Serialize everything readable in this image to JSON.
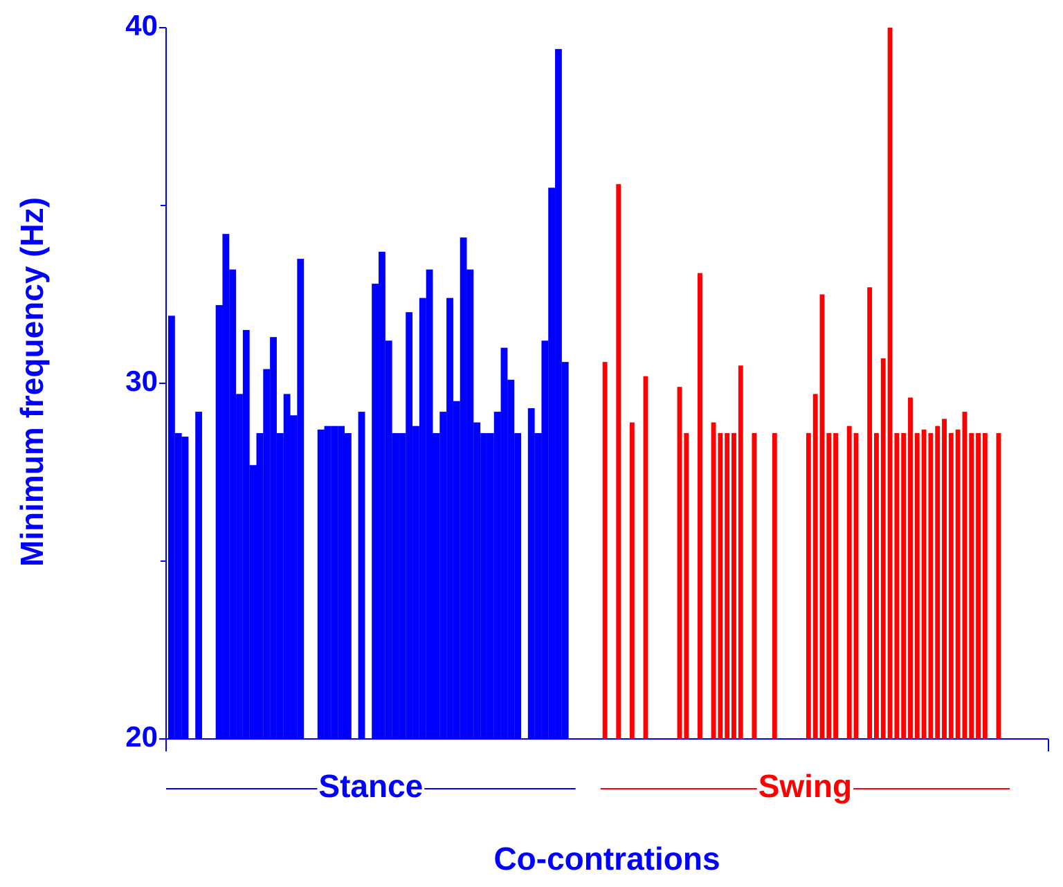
{
  "chart_data": {
    "type": "bar",
    "xlabel": "Co-contrations",
    "ylabel": "Minimum frequency (Hz)",
    "ylim": [
      20,
      40
    ],
    "yticks": [
      20,
      30,
      40
    ],
    "yminorticks": [
      25,
      35
    ],
    "axis_color": "#0000ff",
    "series": [
      {
        "name": "Stance",
        "color": "#0000ff",
        "values": [
          31.9,
          28.6,
          28.5,
          null,
          29.2,
          null,
          null,
          32.2,
          34.2,
          33.2,
          29.7,
          31.5,
          27.7,
          28.6,
          30.4,
          31.3,
          28.6,
          29.7,
          29.1,
          33.5,
          null,
          null,
          28.7,
          28.8,
          28.8,
          28.8,
          28.6,
          null,
          29.2,
          null,
          32.8,
          33.7,
          31.2,
          28.6,
          28.6,
          32.0,
          28.8,
          32.4,
          33.2,
          28.6,
          29.2,
          32.4,
          29.5,
          34.1,
          33.2,
          28.9,
          28.6,
          28.6,
          29.2,
          31.0,
          30.1,
          28.6,
          null,
          29.3,
          28.6,
          31.2,
          35.5,
          39.4,
          30.6,
          null,
          null,
          null,
          null,
          null,
          null,
          null,
          null,
          null,
          null,
          null,
          null,
          null,
          null,
          null,
          null,
          null,
          null,
          null,
          null,
          null,
          null,
          null,
          null,
          null,
          null,
          null,
          null,
          null,
          null,
          null,
          null,
          null,
          null,
          null,
          null,
          null,
          null,
          null,
          null,
          null,
          null,
          null,
          null,
          null,
          null,
          null,
          null,
          null,
          null,
          null,
          null,
          null,
          null,
          null,
          null,
          null,
          null,
          null,
          null,
          null,
          null,
          null,
          null,
          null,
          null,
          null,
          null,
          null,
          null
        ]
      },
      {
        "name": "Swing",
        "color": "#ff0000",
        "values": [
          null,
          null,
          null,
          null,
          null,
          null,
          null,
          null,
          null,
          null,
          null,
          null,
          null,
          null,
          null,
          null,
          null,
          null,
          null,
          null,
          null,
          null,
          null,
          null,
          null,
          null,
          null,
          null,
          null,
          null,
          null,
          null,
          null,
          null,
          null,
          null,
          null,
          null,
          null,
          null,
          null,
          null,
          null,
          null,
          null,
          null,
          null,
          null,
          null,
          null,
          null,
          null,
          null,
          null,
          null,
          null,
          null,
          null,
          null,
          null,
          null,
          null,
          null,
          null,
          30.6,
          null,
          35.6,
          null,
          28.9,
          null,
          30.2,
          null,
          null,
          null,
          null,
          29.9,
          28.6,
          null,
          33.1,
          null,
          28.9,
          28.6,
          28.6,
          28.6,
          30.5,
          null,
          28.6,
          null,
          null,
          28.6,
          null,
          null,
          null,
          null,
          28.6,
          29.7,
          32.5,
          28.6,
          28.6,
          null,
          28.8,
          28.6,
          null,
          32.7,
          28.6,
          30.7,
          40.0,
          28.6,
          28.6,
          29.6,
          28.6,
          28.7,
          28.6,
          28.8,
          29.0,
          28.6,
          28.7,
          29.2,
          28.6,
          28.6,
          28.6,
          null,
          28.6,
          null
        ]
      }
    ]
  }
}
